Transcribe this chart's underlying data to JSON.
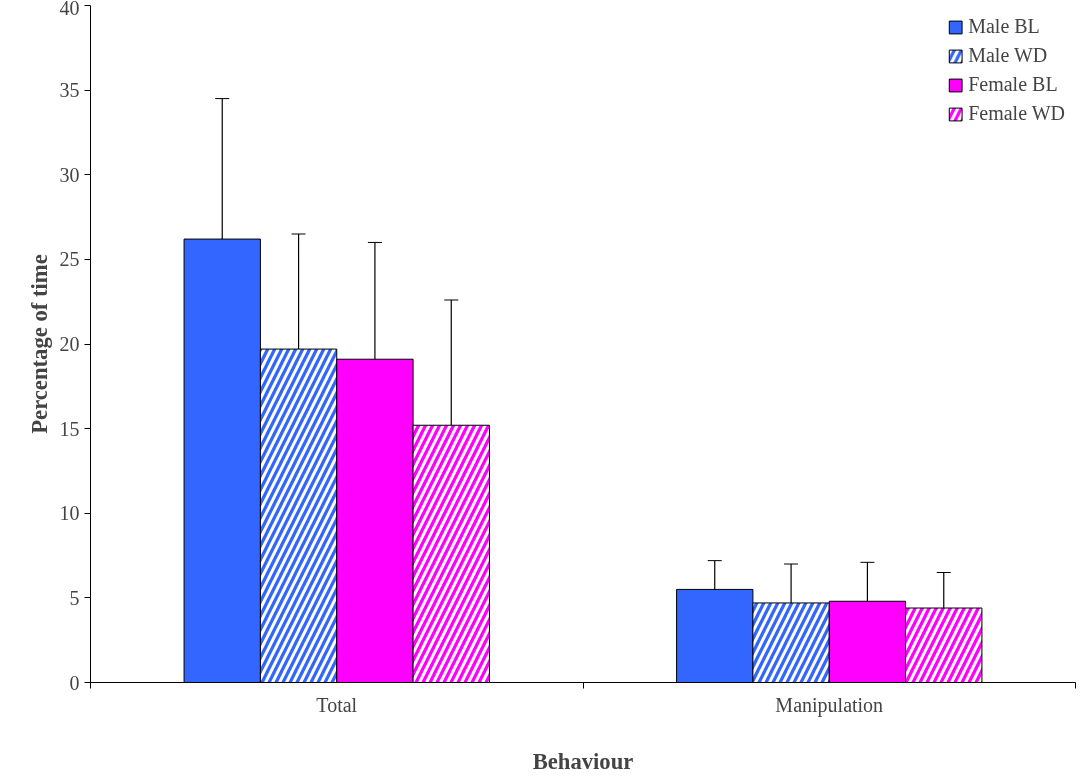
{
  "chart_data": {
    "type": "bar",
    "xlabel": "Behaviour",
    "ylabel": "Percentage of time",
    "categories": [
      "Total",
      "Manipulation"
    ],
    "series": [
      {
        "name": "Male BL",
        "color": "#3366ff",
        "values": [
          26.2,
          5.5
        ],
        "errors": [
          [
            26.2,
            34.5
          ],
          [
            5.5,
            7.2
          ]
        ]
      },
      {
        "name": "Male WD",
        "color": "#3366ff",
        "values": [
          19.7,
          4.7
        ],
        "errors": [
          [
            19.7,
            26.5
          ],
          [
            4.7,
            7.0
          ]
        ]
      },
      {
        "name": "Female BL",
        "color": "#ff00ff",
        "values": [
          19.1,
          4.8
        ],
        "errors": [
          [
            19.1,
            26.0
          ],
          [
            4.8,
            7.1
          ]
        ]
      },
      {
        "name": "Female WD",
        "color": "#ff00ff",
        "values": [
          15.2,
          4.4
        ],
        "errors": [
          [
            15.2,
            22.6
          ],
          [
            4.4,
            6.5
          ]
        ]
      }
    ],
    "ylim": [
      0,
      40
    ],
    "yticks": [
      0,
      5,
      10,
      15,
      20,
      25,
      30,
      35,
      40
    ],
    "grid": false,
    "legend": "top right"
  }
}
